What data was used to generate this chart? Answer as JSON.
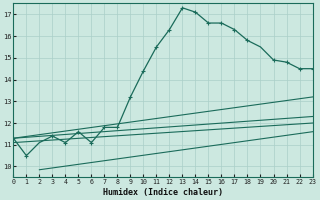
{
  "xlabel": "Humidex (Indice chaleur)",
  "bg_color": "#cce8e0",
  "grid_color": "#aacfc8",
  "line_color": "#1a6b5a",
  "x_min": 0,
  "x_max": 23,
  "y_min": 9.5,
  "y_max": 17.5,
  "yticks": [
    10,
    11,
    12,
    13,
    14,
    15,
    16,
    17
  ],
  "xticks": [
    0,
    1,
    2,
    3,
    4,
    5,
    6,
    7,
    8,
    9,
    10,
    11,
    12,
    13,
    14,
    15,
    16,
    17,
    18,
    19,
    20,
    21,
    22,
    23
  ],
  "main_x": [
    0,
    1,
    2,
    3,
    4,
    5,
    6,
    7,
    8,
    9,
    10,
    11,
    12,
    13,
    14,
    15,
    16,
    17,
    18,
    19,
    20,
    21,
    22,
    23
  ],
  "main_y": [
    11.3,
    10.5,
    11.1,
    11.4,
    11.1,
    11.6,
    11.1,
    11.8,
    11.8,
    13.2,
    14.4,
    15.5,
    16.3,
    17.3,
    17.1,
    16.6,
    16.6,
    16.3,
    15.8,
    15.5,
    14.9,
    14.8,
    14.5,
    14.5
  ],
  "marker_x": [
    0,
    1,
    3,
    4,
    5,
    6,
    7,
    8,
    9,
    10,
    11,
    12,
    13,
    14,
    15,
    16,
    17,
    18,
    20,
    21,
    22,
    23
  ],
  "marker_y": [
    11.3,
    10.5,
    11.4,
    11.1,
    11.6,
    11.1,
    11.8,
    11.8,
    13.2,
    14.4,
    15.5,
    16.3,
    17.3,
    17.1,
    16.6,
    16.6,
    16.3,
    15.8,
    14.9,
    14.8,
    14.5,
    14.5
  ],
  "line1_x": [
    0,
    23
  ],
  "line1_y": [
    11.3,
    13.2
  ],
  "line2_x": [
    0,
    23
  ],
  "line2_y": [
    11.1,
    12.0
  ],
  "line3_x": [
    2,
    23
  ],
  "line3_y": [
    9.85,
    11.6
  ],
  "line4_x": [
    0,
    23
  ],
  "line4_y": [
    11.3,
    12.3
  ]
}
